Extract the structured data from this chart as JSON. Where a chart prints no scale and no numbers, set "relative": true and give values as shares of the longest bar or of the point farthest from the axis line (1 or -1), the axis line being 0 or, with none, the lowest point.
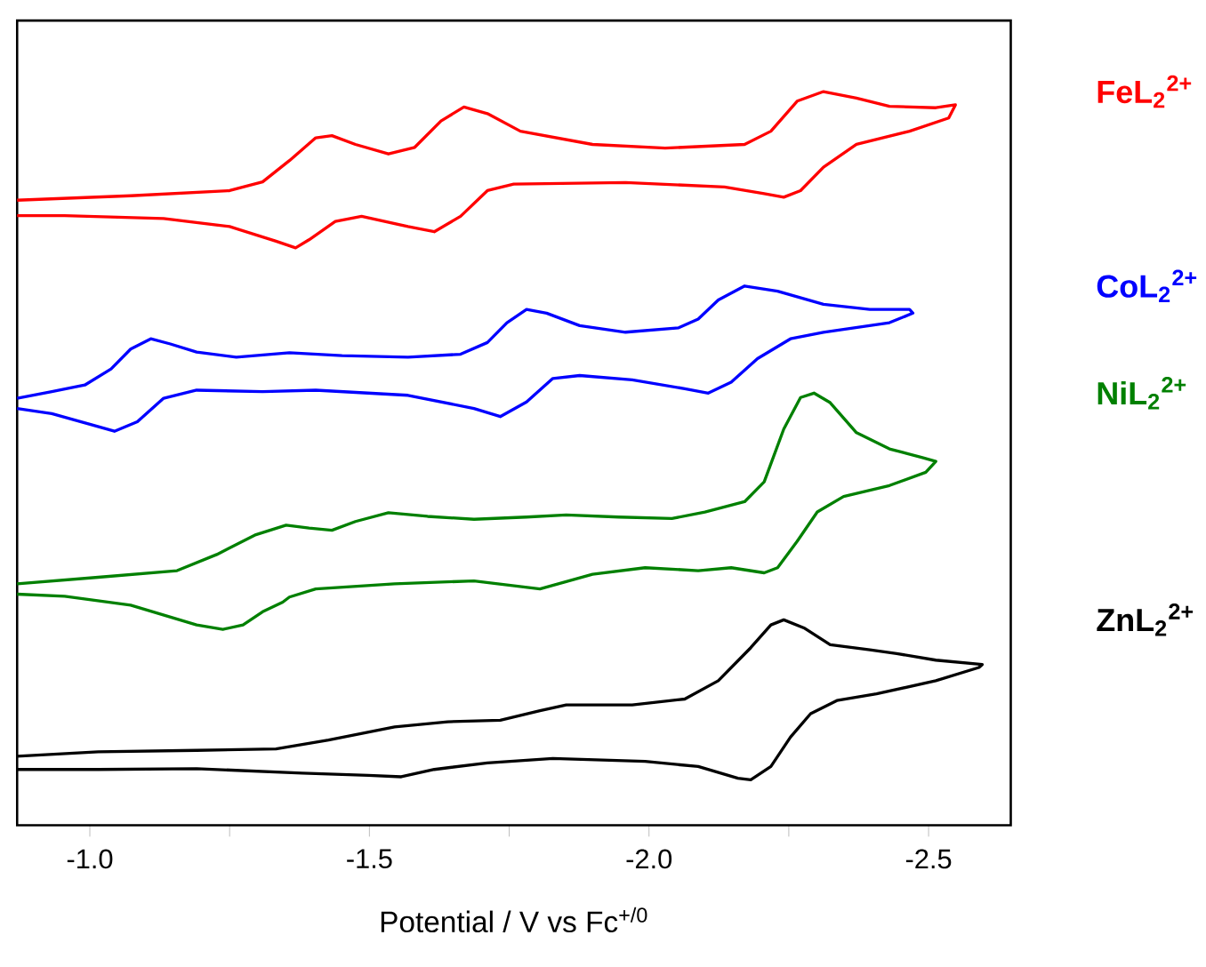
{
  "chart_data": {
    "type": "line",
    "relative": true,
    "xlabel": "Potential / V vs Fc$^{+/0}$",
    "xlim": [
      -0.87,
      -2.647
    ],
    "xticks": [
      {
        "value": -1.0,
        "label": "-1.0"
      },
      {
        "value": -1.25,
        "label": null
      },
      {
        "value": -1.5,
        "label": "-1.5"
      },
      {
        "value": -1.75,
        "label": null
      },
      {
        "value": -2.0,
        "label": "-2.0"
      },
      {
        "value": -2.25,
        "label": null
      },
      {
        "value": -2.5,
        "label": "-2.5"
      }
    ],
    "grid": false,
    "legend": false,
    "marker": "none",
    "line_style": "solid",
    "series": [
      {
        "name": "FeL$_{2}$$^{2+}$",
        "color": "#ff0000",
        "x": [
          -0.87,
          -1.073,
          -1.25,
          -1.309,
          -1.357,
          -1.404,
          -1.433,
          -1.475,
          -1.534,
          -1.581,
          -1.628,
          -1.669,
          -1.711,
          -1.77,
          -1.899,
          -2.029,
          -2.171,
          -2.218,
          -2.265,
          -2.312,
          -2.371,
          -2.43,
          -2.513,
          -2.548,
          -2.536,
          -2.466,
          -2.371,
          -2.312,
          -2.271,
          -2.241,
          -2.206,
          -2.135,
          -1.958,
          -1.758,
          -1.711,
          -1.663,
          -1.616,
          -1.569,
          -1.486,
          -1.439,
          -1.392,
          -1.368,
          -1.333,
          -1.25,
          -1.132,
          -0.955,
          -0.87
        ],
        "values": [
          0.852,
          0.858,
          0.865,
          0.877,
          0.906,
          0.937,
          0.94,
          0.928,
          0.915,
          0.924,
          0.96,
          0.979,
          0.97,
          0.946,
          0.928,
          0.923,
          0.928,
          0.946,
          0.987,
          1.0,
          0.991,
          0.98,
          0.978,
          0.982,
          0.964,
          0.946,
          0.928,
          0.897,
          0.865,
          0.856,
          0.861,
          0.87,
          0.876,
          0.874,
          0.865,
          0.83,
          0.809,
          0.816,
          0.83,
          0.823,
          0.798,
          0.787,
          0.796,
          0.816,
          0.827,
          0.831,
          0.831
        ]
      },
      {
        "name": "CoL$_{2}$$^{2+}$",
        "color": "#0000ff",
        "x": [
          -0.87,
          -0.932,
          -0.991,
          -1.038,
          -1.073,
          -1.109,
          -1.144,
          -1.191,
          -1.262,
          -1.357,
          -1.451,
          -1.569,
          -1.663,
          -1.711,
          -1.746,
          -1.781,
          -1.817,
          -1.876,
          -1.958,
          -2.053,
          -2.088,
          -2.124,
          -2.171,
          -2.23,
          -2.312,
          -2.395,
          -2.466,
          -2.472,
          -2.43,
          -2.312,
          -2.253,
          -2.194,
          -2.147,
          -2.106,
          -2.064,
          -1.97,
          -1.876,
          -1.828,
          -1.781,
          -1.734,
          -1.687,
          -1.569,
          -1.404,
          -1.309,
          -1.191,
          -1.132,
          -1.085,
          -1.044,
          -1.003,
          -0.932,
          -0.87
        ],
        "values": [
          0.582,
          0.591,
          0.6,
          0.622,
          0.649,
          0.663,
          0.656,
          0.645,
          0.638,
          0.644,
          0.64,
          0.638,
          0.642,
          0.658,
          0.685,
          0.703,
          0.698,
          0.681,
          0.672,
          0.678,
          0.69,
          0.716,
          0.735,
          0.728,
          0.71,
          0.703,
          0.703,
          0.698,
          0.685,
          0.672,
          0.663,
          0.636,
          0.604,
          0.589,
          0.595,
          0.607,
          0.613,
          0.609,
          0.577,
          0.557,
          0.568,
          0.586,
          0.593,
          0.591,
          0.593,
          0.582,
          0.55,
          0.537,
          0.546,
          0.561,
          0.568
        ]
      },
      {
        "name": "NiL$_{2}$$^{2+}$",
        "color": "#008000",
        "x": [
          -0.87,
          -1.015,
          -1.156,
          -1.227,
          -1.297,
          -1.351,
          -1.392,
          -1.433,
          -1.475,
          -1.534,
          -1.604,
          -1.687,
          -1.781,
          -1.852,
          -1.946,
          -2.041,
          -2.1,
          -2.171,
          -2.206,
          -2.241,
          -2.271,
          -2.295,
          -2.324,
          -2.371,
          -2.43,
          -2.489,
          -2.513,
          -2.495,
          -2.43,
          -2.348,
          -2.301,
          -2.265,
          -2.23,
          -2.206,
          -2.147,
          -2.088,
          -1.993,
          -1.899,
          -1.805,
          -1.687,
          -1.545,
          -1.404,
          -1.357,
          -1.345,
          -1.309,
          -1.274,
          -1.238,
          -1.191,
          -1.073,
          -0.955,
          -0.87
        ],
        "values": [
          0.329,
          0.338,
          0.347,
          0.369,
          0.396,
          0.409,
          0.405,
          0.402,
          0.414,
          0.426,
          0.421,
          0.417,
          0.42,
          0.423,
          0.42,
          0.418,
          0.427,
          0.441,
          0.468,
          0.54,
          0.583,
          0.589,
          0.576,
          0.535,
          0.513,
          0.501,
          0.496,
          0.481,
          0.463,
          0.448,
          0.427,
          0.387,
          0.351,
          0.344,
          0.351,
          0.347,
          0.351,
          0.342,
          0.322,
          0.333,
          0.329,
          0.322,
          0.311,
          0.304,
          0.291,
          0.273,
          0.267,
          0.273,
          0.3,
          0.312,
          0.315
        ]
      },
      {
        "name": "ZnL$_{2}$$^{2+}$",
        "color": "#000000",
        "x": [
          -0.87,
          -1.015,
          -1.191,
          -1.333,
          -1.427,
          -1.545,
          -1.64,
          -1.734,
          -1.805,
          -1.852,
          -1.97,
          -2.064,
          -2.124,
          -2.182,
          -2.218,
          -2.241,
          -2.277,
          -2.324,
          -2.395,
          -2.443,
          -2.513,
          -2.596,
          -2.59,
          -2.513,
          -2.407,
          -2.336,
          -2.289,
          -2.253,
          -2.218,
          -2.182,
          -2.159,
          -2.088,
          -1.993,
          -1.828,
          -1.711,
          -1.616,
          -1.557,
          -1.498,
          -1.38,
          -1.191,
          -1.015,
          -0.87
        ],
        "values": [
          0.094,
          0.1,
          0.102,
          0.104,
          0.116,
          0.134,
          0.141,
          0.143,
          0.156,
          0.164,
          0.164,
          0.172,
          0.197,
          0.242,
          0.273,
          0.28,
          0.269,
          0.246,
          0.239,
          0.234,
          0.225,
          0.219,
          0.215,
          0.197,
          0.179,
          0.17,
          0.152,
          0.12,
          0.08,
          0.062,
          0.064,
          0.08,
          0.087,
          0.091,
          0.085,
          0.076,
          0.066,
          0.068,
          0.071,
          0.077,
          0.076,
          0.076
        ]
      }
    ]
  }
}
